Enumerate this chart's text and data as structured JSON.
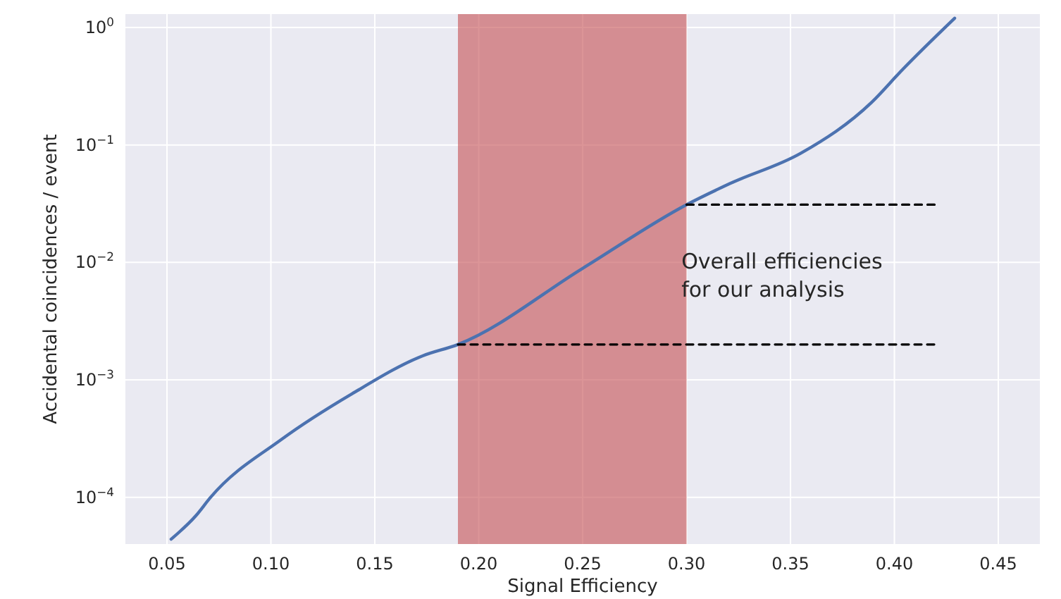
{
  "chart_data": {
    "type": "line",
    "xlabel": "Signal Efficiency",
    "ylabel": "Accidental coincidences / event",
    "log": "y",
    "grid": true,
    "xlim": [
      0.03,
      0.47
    ],
    "ylim": [
      4e-05,
      1.3
    ],
    "xticks": [
      0.05,
      {
        "value": 0.1,
        "label": "0.10"
      },
      0.15,
      {
        "value": 0.2,
        "label": "0.20"
      },
      0.25,
      {
        "value": 0.3,
        "label": "0.30"
      },
      0.35,
      {
        "value": 0.4,
        "label": "0.40"
      },
      0.45
    ],
    "yticks": [
      {
        "value": 0.0001,
        "label": "10$^{−4}$"
      },
      {
        "value": 0.001,
        "label": "10$^{−3}$"
      },
      {
        "value": 0.01,
        "label": "10$^{−2}$"
      },
      {
        "value": 0.1,
        "label": "10$^{−1}$"
      },
      {
        "value": 1,
        "label": "10$^{0}$"
      }
    ],
    "series": [
      {
        "color": "#4c72b0",
        "x": [
          0.052,
          0.064,
          0.071,
          0.105,
          0.139,
          0.173,
          0.19,
          0.25,
          0.3,
          0.321,
          0.355,
          0.389,
          0.404,
          0.429
        ],
        "values": [
          4.4e-05,
          7e-05,
          0.0001,
          0.00031,
          0.00076,
          0.0016,
          0.002,
          0.0089,
          0.031,
          0.047,
          0.085,
          0.23,
          0.44,
          1.2
        ]
      },
      {
        "type": "line",
        "line_style": "dashed",
        "color": "#000000",
        "x": [
          0.19,
          0.42
        ],
        "values": [
          0.002,
          0.002
        ]
      },
      {
        "type": "line",
        "line_style": "dashed",
        "color": "#000000",
        "x": [
          0.3,
          0.42
        ],
        "values": [
          0.031,
          0.031
        ]
      }
    ],
    "bands": [
      {
        "axis": "x",
        "from": 0.19,
        "to": 0.3,
        "color": "#c44e52"
      }
    ],
    "annotations": [
      "Overall efficiencies\nfor our analysis"
    ]
  }
}
